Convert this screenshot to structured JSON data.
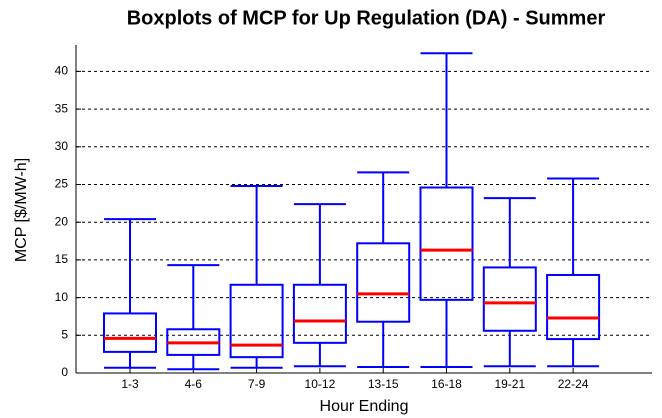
{
  "chart_data": {
    "type": "box",
    "title": "Boxplots of MCP for Up Regulation (DA) - Summer",
    "xlabel": "Hour Ending",
    "ylabel": "MCP [$/MW-h]",
    "categories": [
      "1-3",
      "4-6",
      "7-9",
      "10-12",
      "13-15",
      "16-18",
      "19-21",
      "22-24"
    ],
    "boxes": [
      {
        "low": 0.7,
        "q1": 2.8,
        "median": 4.6,
        "q3": 7.9,
        "high": 20.4
      },
      {
        "low": 0.5,
        "q1": 2.4,
        "median": 4.0,
        "q3": 5.8,
        "high": 14.3
      },
      {
        "low": 0.7,
        "q1": 2.1,
        "median": 3.7,
        "q3": 11.7,
        "high": 24.8
      },
      {
        "low": 0.9,
        "q1": 4.0,
        "median": 6.9,
        "q3": 11.7,
        "high": 22.4
      },
      {
        "low": 0.8,
        "q1": 6.8,
        "median": 10.5,
        "q3": 17.2,
        "high": 26.6
      },
      {
        "low": 0.8,
        "q1": 9.7,
        "median": 16.3,
        "q3": 24.6,
        "high": 42.4
      },
      {
        "low": 0.9,
        "q1": 5.6,
        "median": 9.3,
        "q3": 14.0,
        "high": 23.2
      },
      {
        "low": 0.9,
        "q1": 4.5,
        "median": 7.3,
        "q3": 13.0,
        "high": 25.8
      }
    ],
    "box_color": "#0000ff",
    "median_color": "#ff0000",
    "ylim": [
      0,
      43.5
    ],
    "yticks": [
      0,
      5,
      10,
      15,
      20,
      25,
      30,
      35,
      40
    ],
    "grid": true
  }
}
